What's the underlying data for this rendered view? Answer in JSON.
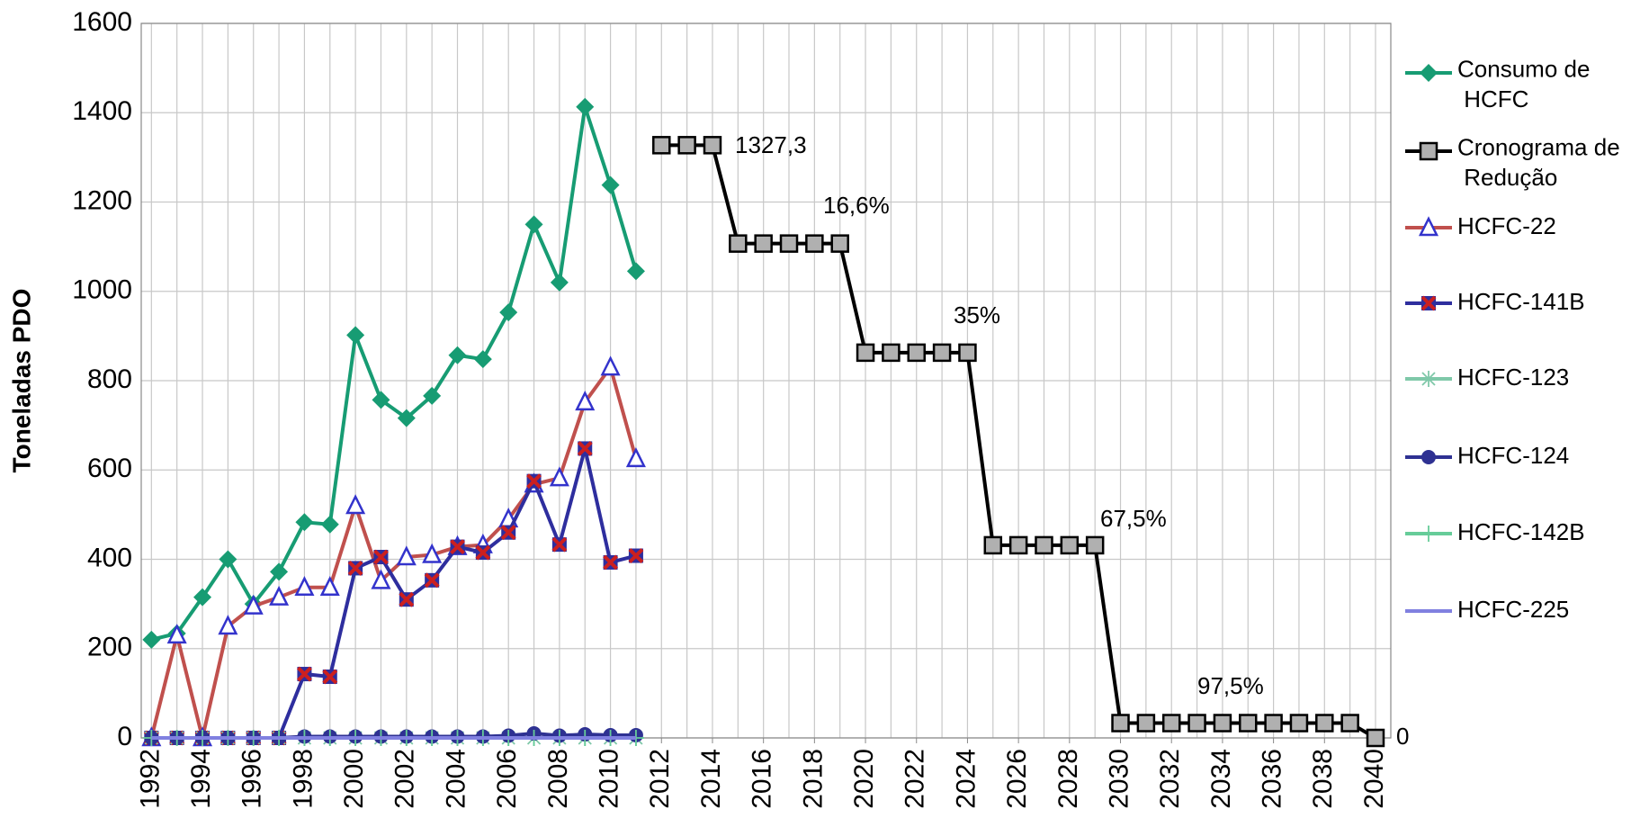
{
  "chart_data": {
    "type": "line",
    "y_label": "Toneladas PDO",
    "xlim": [
      1991.6,
      2040.6
    ],
    "xticks": [
      1992,
      1994,
      1996,
      1998,
      2000,
      2002,
      2004,
      2006,
      2008,
      2010,
      2012,
      2014,
      2016,
      2018,
      2020,
      2022,
      2024,
      2026,
      2028,
      2030,
      2032,
      2034,
      2036,
      2038,
      2040
    ],
    "ylim": [
      0,
      1600
    ],
    "yticks": [
      0,
      200,
      400,
      600,
      800,
      1000,
      1200,
      1400,
      1600
    ],
    "grid": true,
    "legend": "right",
    "annotations": [
      "1327,3",
      "16,6%",
      "35%",
      "67,5%",
      "97,5%",
      "0"
    ],
    "series": [
      {
        "name": "Consumo de HCFC",
        "color": "#179c73",
        "marker": "diamond",
        "marker_color": "#179c73",
        "x": [
          1992,
          1993,
          1994,
          1995,
          1996,
          1997,
          1998,
          1999,
          2000,
          2001,
          2002,
          2003,
          2004,
          2005,
          2006,
          2007,
          2008,
          2009,
          2010,
          2011
        ],
        "values": [
          220,
          234,
          315,
          400,
          300,
          372,
          483,
          478,
          902,
          757,
          716,
          766,
          857,
          848,
          953,
          1150,
          1020,
          1413,
          1238,
          1045
        ]
      },
      {
        "name": "Cronograma de Redução",
        "color": "#000000",
        "marker": "square",
        "marker_color": "#b0b0b0",
        "x": [
          2012,
          2013,
          2014,
          2015,
          2016,
          2017,
          2018,
          2019,
          2020,
          2021,
          2022,
          2023,
          2024,
          2025,
          2026,
          2027,
          2028,
          2029,
          2030,
          2031,
          2032,
          2033,
          2034,
          2035,
          2036,
          2037,
          2038,
          2039,
          2040
        ],
        "values": [
          1327.3,
          1327.3,
          1327.3,
          1107,
          1107,
          1107,
          1107,
          1107,
          862.7,
          862.7,
          862.7,
          862.7,
          862.7,
          431.4,
          431.4,
          431.4,
          431.4,
          431.4,
          33.2,
          33.2,
          33.2,
          33.2,
          33.2,
          33.2,
          33.2,
          33.2,
          33.2,
          33.2,
          0
        ]
      },
      {
        "name": "HCFC-22",
        "color": "#c0504d",
        "marker": "triangle",
        "marker_color": "#3333cc",
        "x": [
          1992,
          1993,
          1994,
          1995,
          1996,
          1997,
          1998,
          1999,
          2000,
          2001,
          2002,
          2003,
          2004,
          2005,
          2006,
          2007,
          2008,
          2009,
          2010,
          2011
        ],
        "values": [
          0,
          230,
          0,
          250,
          295,
          315,
          337,
          337,
          520,
          352,
          405,
          410,
          428,
          432,
          490,
          568,
          582,
          752,
          830,
          625
        ]
      },
      {
        "name": "HCFC-141B",
        "color": "#2e2e9e",
        "marker": "x",
        "marker_color": "#cc1f1f",
        "x": [
          1992,
          1993,
          1994,
          1995,
          1996,
          1997,
          1998,
          1999,
          2000,
          2001,
          2002,
          2003,
          2004,
          2005,
          2006,
          2007,
          2008,
          2009,
          2010,
          2011
        ],
        "values": [
          0,
          0,
          0,
          0,
          0,
          0,
          143,
          137,
          380,
          405,
          310,
          353,
          428,
          415,
          460,
          575,
          433,
          648,
          393,
          408
        ]
      },
      {
        "name": "HCFC-123",
        "color": "#7fc8a9",
        "marker": "asterisk",
        "marker_color": "#7fc8a9",
        "x": [
          1992,
          1993,
          1994,
          1995,
          1996,
          1997,
          1998,
          1999,
          2000,
          2001,
          2002,
          2003,
          2004,
          2005,
          2006,
          2007,
          2008,
          2009,
          2010,
          2011
        ],
        "values": [
          0,
          0,
          0,
          0,
          0,
          0,
          0,
          0,
          0,
          0,
          0,
          0,
          0,
          0,
          0,
          0,
          0,
          0,
          0,
          0
        ]
      },
      {
        "name": "HCFC-124",
        "color": "#2e3192",
        "marker": "circle",
        "marker_color": "#2e3192",
        "x": [
          1992,
          1993,
          1994,
          1995,
          1996,
          1997,
          1998,
          1999,
          2000,
          2001,
          2002,
          2003,
          2004,
          2005,
          2006,
          2007,
          2008,
          2009,
          2010,
          2011
        ],
        "values": [
          0,
          0,
          0,
          0,
          0,
          0,
          3,
          3,
          3,
          3,
          3,
          3,
          3,
          3,
          5,
          10,
          5,
          8,
          6,
          6
        ]
      },
      {
        "name": "HCFC-142B",
        "color": "#66cc99",
        "marker": "plus",
        "marker_color": "#66cc99",
        "x": [
          1992,
          1993,
          1994,
          1995,
          1996,
          1997,
          1998,
          1999,
          2000,
          2001,
          2002,
          2003,
          2004,
          2005,
          2006,
          2007,
          2008,
          2009,
          2010,
          2011
        ],
        "values": [
          0,
          0,
          0,
          0,
          0,
          0,
          0,
          0,
          0,
          0,
          0,
          0,
          0,
          0,
          0,
          0,
          0,
          0,
          0,
          0
        ]
      },
      {
        "name": "HCFC-225",
        "color": "#8080e0",
        "marker": "none",
        "marker_color": "#8080e0",
        "x": [
          1992,
          1993,
          1994,
          1995,
          1996,
          1997,
          1998,
          1999,
          2000,
          2001,
          2002,
          2003,
          2004,
          2005,
          2006,
          2007,
          2008,
          2009,
          2010,
          2011
        ],
        "values": [
          0,
          0,
          0,
          0,
          0,
          0,
          0,
          0,
          0,
          0,
          0,
          0,
          0,
          0,
          0,
          0,
          0,
          0,
          0,
          0
        ]
      }
    ]
  }
}
